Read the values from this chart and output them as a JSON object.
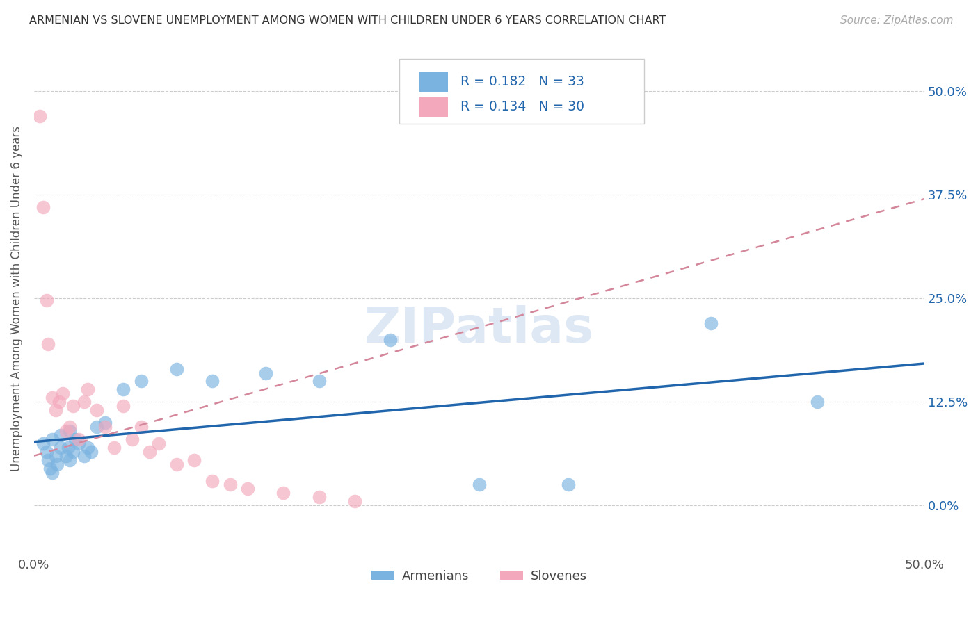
{
  "title": "ARMENIAN VS SLOVENE UNEMPLOYMENT AMONG WOMEN WITH CHILDREN UNDER 6 YEARS CORRELATION CHART",
  "source": "Source: ZipAtlas.com",
  "ylabel": "Unemployment Among Women with Children Under 6 years",
  "xlim": [
    0.0,
    0.5
  ],
  "ylim": [
    -0.06,
    0.56
  ],
  "yticks": [
    0.0,
    0.125,
    0.25,
    0.375,
    0.5
  ],
  "ytick_labels": [
    "0.0%",
    "12.5%",
    "25.0%",
    "37.5%",
    "50.0%"
  ],
  "xticks": [
    0.0,
    0.5
  ],
  "xtick_labels": [
    "0.0%",
    "50.0%"
  ],
  "armenian_color": "#7ab3e0",
  "slovene_color": "#f4a8bc",
  "armenian_line_color": "#2166ac",
  "slovene_line_color": "#d4869a",
  "R_armenian": 0.182,
  "N_armenian": 33,
  "R_slovene": 0.134,
  "N_slovene": 30,
  "legend_text_color": "#2166ac",
  "background_color": "#ffffff",
  "watermark": "ZIPatlas",
  "armenian_x": [
    0.005,
    0.007,
    0.008,
    0.009,
    0.01,
    0.01,
    0.012,
    0.013,
    0.015,
    0.015,
    0.018,
    0.019,
    0.02,
    0.02,
    0.022,
    0.023,
    0.025,
    0.028,
    0.03,
    0.032,
    0.035,
    0.04,
    0.05,
    0.06,
    0.08,
    0.1,
    0.13,
    0.16,
    0.2,
    0.25,
    0.3,
    0.38,
    0.44
  ],
  "armenian_y": [
    0.075,
    0.065,
    0.055,
    0.045,
    0.04,
    0.08,
    0.06,
    0.05,
    0.07,
    0.085,
    0.06,
    0.07,
    0.055,
    0.09,
    0.065,
    0.08,
    0.075,
    0.06,
    0.07,
    0.065,
    0.095,
    0.1,
    0.14,
    0.15,
    0.165,
    0.15,
    0.16,
    0.15,
    0.2,
    0.025,
    0.025,
    0.22,
    0.125
  ],
  "slovene_x": [
    0.003,
    0.005,
    0.007,
    0.008,
    0.01,
    0.012,
    0.014,
    0.016,
    0.018,
    0.02,
    0.022,
    0.025,
    0.028,
    0.03,
    0.035,
    0.04,
    0.045,
    0.05,
    0.055,
    0.06,
    0.065,
    0.07,
    0.08,
    0.09,
    0.1,
    0.11,
    0.12,
    0.14,
    0.16,
    0.18
  ],
  "slovene_y": [
    0.47,
    0.36,
    0.248,
    0.195,
    0.13,
    0.115,
    0.125,
    0.135,
    0.09,
    0.095,
    0.12,
    0.08,
    0.125,
    0.14,
    0.115,
    0.095,
    0.07,
    0.12,
    0.08,
    0.095,
    0.065,
    0.075,
    0.05,
    0.055,
    0.03,
    0.025,
    0.02,
    0.015,
    0.01,
    0.005
  ]
}
